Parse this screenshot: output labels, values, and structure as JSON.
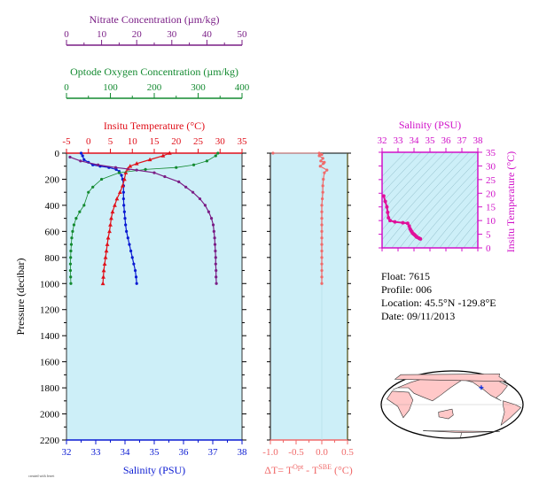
{
  "chart_data": [
    {
      "type": "line",
      "name": "profile",
      "colors": {
        "salinity": "#0a1ad2",
        "temperature": "#e0101a",
        "oxygen": "#138a30",
        "nitrate": "#7a1e86",
        "panel_bg": "#cdeff8"
      },
      "y": {
        "label": "Pressure (decibar)",
        "ylim": [
          2200,
          0
        ],
        "ticks": [
          "0",
          "200",
          "400",
          "600",
          "800",
          "1000",
          "1200",
          "1400",
          "1600",
          "1800",
          "2000",
          "2200"
        ]
      },
      "axes": {
        "salinity": {
          "label": "Salinity (PSU)",
          "range": [
            32,
            38
          ],
          "ticks": [
            "32",
            "33",
            "34",
            "35",
            "36",
            "37",
            "38"
          ]
        },
        "temperature": {
          "label": "Insitu Temperature (°C)",
          "range": [
            -5,
            35
          ],
          "ticks": [
            "-5",
            "0",
            "5",
            "10",
            "15",
            "20",
            "25",
            "30",
            "35"
          ]
        },
        "oxygen": {
          "label": "Optode Oxygen Concentration (µm/kg)",
          "range": [
            0,
            400
          ],
          "ticks": [
            "0",
            "100",
            "200",
            "300",
            "400"
          ]
        },
        "nitrate": {
          "label": "Nitrate Concentration (µm/kg)",
          "range": [
            0,
            50
          ],
          "ticks": [
            "0",
            "10",
            "20",
            "30",
            "40",
            "50"
          ]
        }
      },
      "series": [
        {
          "key": "salinity",
          "points": [
            [
              32.5,
              0
            ],
            [
              32.55,
              20
            ],
            [
              32.6,
              50
            ],
            [
              32.75,
              70
            ],
            [
              32.9,
              90
            ],
            [
              33.15,
              100
            ],
            [
              33.45,
              110
            ],
            [
              33.7,
              125
            ],
            [
              33.8,
              140
            ],
            [
              33.88,
              170
            ],
            [
              33.92,
              200
            ],
            [
              33.95,
              250
            ],
            [
              33.95,
              300
            ],
            [
              33.95,
              350
            ],
            [
              33.96,
              400
            ],
            [
              33.98,
              450
            ],
            [
              34.0,
              500
            ],
            [
              34.02,
              550
            ],
            [
              34.05,
              600
            ],
            [
              34.1,
              650
            ],
            [
              34.15,
              700
            ],
            [
              34.2,
              750
            ],
            [
              34.25,
              800
            ],
            [
              34.3,
              850
            ],
            [
              34.35,
              900
            ],
            [
              34.38,
              950
            ],
            [
              34.4,
              1000
            ]
          ]
        },
        {
          "key": "temperature",
          "points": [
            [
              18.5,
              0
            ],
            [
              17,
              20
            ],
            [
              14,
              50
            ],
            [
              11,
              80
            ],
            [
              9.5,
              100
            ],
            [
              9,
              120
            ],
            [
              8.5,
              150
            ],
            [
              8.2,
              200
            ],
            [
              7.8,
              250
            ],
            [
              7.2,
              300
            ],
            [
              6.5,
              350
            ],
            [
              6,
              400
            ],
            [
              5.5,
              450
            ],
            [
              5.2,
              500
            ],
            [
              5,
              550
            ],
            [
              4.8,
              600
            ],
            [
              4.5,
              650
            ],
            [
              4.3,
              700
            ],
            [
              4.1,
              750
            ],
            [
              3.9,
              800
            ],
            [
              3.7,
              850
            ],
            [
              3.5,
              900
            ],
            [
              3.4,
              950
            ],
            [
              3.3,
              1000
            ]
          ]
        },
        {
          "key": "oxygen",
          "points": [
            [
              345,
              0
            ],
            [
              340,
              20
            ],
            [
              320,
              60
            ],
            [
              290,
              90
            ],
            [
              250,
              110
            ],
            [
              180,
              125
            ],
            [
              120,
              150
            ],
            [
              80,
              200
            ],
            [
              60,
              260
            ],
            [
              50,
              300
            ],
            [
              40,
              400
            ],
            [
              30,
              450
            ],
            [
              22,
              500
            ],
            [
              17,
              550
            ],
            [
              14,
              600
            ],
            [
              12,
              650
            ],
            [
              11,
              700
            ],
            [
              10,
              750
            ],
            [
              9.5,
              800
            ],
            [
              9,
              850
            ],
            [
              9,
              900
            ],
            [
              9.5,
              950
            ],
            [
              10,
              1000
            ]
          ]
        },
        {
          "key": "nitrate",
          "points": [
            [
              1,
              30
            ],
            [
              4,
              60
            ],
            [
              9,
              90
            ],
            [
              14,
              110
            ],
            [
              20,
              130
            ],
            [
              25,
              150
            ],
            [
              28,
              180
            ],
            [
              32,
              220
            ],
            [
              34,
              260
            ],
            [
              36,
              300
            ],
            [
              38,
              350
            ],
            [
              39.5,
              400
            ],
            [
              40.5,
              450
            ],
            [
              41.3,
              500
            ],
            [
              41.8,
              550
            ],
            [
              42,
              600
            ],
            [
              42.2,
              650
            ],
            [
              42.3,
              700
            ],
            [
              42.4,
              750
            ],
            [
              42.5,
              800
            ],
            [
              42.5,
              850
            ],
            [
              42.6,
              900
            ],
            [
              42.6,
              950
            ],
            [
              42.7,
              1000
            ]
          ]
        }
      ]
    },
    {
      "type": "scatter",
      "name": "delta-t",
      "xlabel": "ΔT= T",
      "xlabel_sup1": "Opt",
      "xlabel_mid": " - T",
      "xlabel_sup2": "SBE",
      "xlabel_tail": " (°C)",
      "xlim": [
        -1.0,
        0.5
      ],
      "ticks": [
        "-1.0",
        "-0.5",
        "0.0",
        "0.5"
      ],
      "ylim": [
        2200,
        0
      ],
      "color": "#f06a6a",
      "points": [
        [
          -0.95,
          0
        ],
        [
          -0.05,
          0
        ],
        [
          0.0,
          10
        ],
        [
          -0.05,
          20
        ],
        [
          0.02,
          40
        ],
        [
          -0.02,
          60
        ],
        [
          0.05,
          70
        ],
        [
          0.03,
          80
        ],
        [
          -0.03,
          100
        ],
        [
          0.1,
          130
        ],
        [
          0.05,
          150
        ],
        [
          0.03,
          200
        ],
        [
          0.02,
          250
        ],
        [
          0.02,
          300
        ],
        [
          0.01,
          350
        ],
        [
          0.0,
          400
        ],
        [
          0.0,
          450
        ],
        [
          0.0,
          500
        ],
        [
          0.0,
          550
        ],
        [
          0.0,
          600
        ],
        [
          0.0,
          650
        ],
        [
          0.0,
          700
        ],
        [
          0.0,
          750
        ],
        [
          0.0,
          800
        ],
        [
          0.0,
          850
        ],
        [
          0.0,
          900
        ],
        [
          0.0,
          950
        ],
        [
          0.0,
          1000
        ]
      ]
    },
    {
      "type": "scatter",
      "name": "ts-diagram",
      "xlabel": "Salinity (PSU)",
      "ylabel": "Insitu Temperature (°C)",
      "xlim": [
        32,
        38
      ],
      "ylim": [
        0,
        35
      ],
      "xticks": [
        "32",
        "33",
        "34",
        "35",
        "36",
        "37",
        "38"
      ],
      "yticks": [
        "0",
        "5",
        "10",
        "15",
        "20",
        "25",
        "30",
        "35"
      ],
      "color": "#e0109a",
      "points": [
        [
          32.1,
          19
        ],
        [
          32.2,
          17
        ],
        [
          32.3,
          15
        ],
        [
          32.35,
          13
        ],
        [
          32.4,
          11
        ],
        [
          32.5,
          10
        ],
        [
          32.8,
          9.5
        ],
        [
          33.3,
          9.2
        ],
        [
          33.6,
          9
        ],
        [
          33.7,
          8
        ],
        [
          33.75,
          7
        ],
        [
          33.8,
          6.5
        ],
        [
          33.85,
          6
        ],
        [
          33.9,
          5.5
        ],
        [
          33.95,
          5.2
        ],
        [
          34.0,
          5
        ],
        [
          34.05,
          4.7
        ],
        [
          34.1,
          4.4
        ],
        [
          34.15,
          4.1
        ],
        [
          34.2,
          3.9
        ],
        [
          34.3,
          3.6
        ],
        [
          34.35,
          3.4
        ],
        [
          34.4,
          3.3
        ]
      ]
    }
  ],
  "info": {
    "float": "Float:  7615",
    "profile": "Profile:  006",
    "location": "Location:  45.5°N  -129.8°E",
    "date": "Date:  09/11/2013"
  },
  "map": {
    "marker_lat": 45.5,
    "marker_lon": -129.8,
    "marker_color": "#1030e0",
    "land_color": "#ffc8c8"
  },
  "footer": {
    "tiny": "created with ferret"
  }
}
